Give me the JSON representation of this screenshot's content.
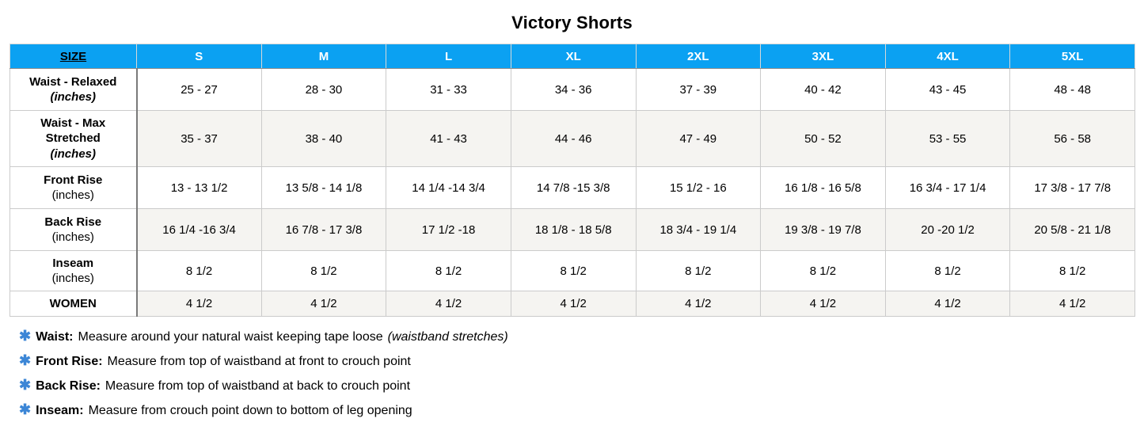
{
  "title": "Victory Shorts",
  "chart_data": {
    "type": "table",
    "title": "Victory Shorts",
    "header": {
      "size": "SIZE",
      "sizes": [
        "S",
        "M",
        "L",
        "XL",
        "2XL",
        "3XL",
        "4XL",
        "5XL"
      ]
    },
    "rows": [
      {
        "label": "Waist - Relaxed",
        "unit": "(inches)",
        "values": [
          "25 - 27",
          "28 - 30",
          "31 - 33",
          "34 - 36",
          "37 - 39",
          "40 - 42",
          "43 - 45",
          "48 - 48"
        ]
      },
      {
        "label": "Waist - Max Stretched",
        "unit": "(inches)",
        "values": [
          "35 - 37",
          "38 - 40",
          "41 - 43",
          "44 - 46",
          "47 - 49",
          "50 - 52",
          "53 - 55",
          "56 - 58"
        ]
      },
      {
        "label": "Front Rise",
        "unit": "(inches)",
        "values": [
          "13 - 13 1/2",
          "13 5/8 - 14 1/8",
          "14 1/4 -14 3/4",
          "14 7/8 -15 3/8",
          "15 1/2 - 16",
          "16 1/8 - 16 5/8",
          "16 3/4 - 17 1/4",
          "17 3/8 - 17 7/8"
        ]
      },
      {
        "label": "Back Rise",
        "unit": "(inches)",
        "values": [
          "16 1/4 -16 3/4",
          "16 7/8 - 17 3/8",
          "17 1/2 -18",
          "18 1/8 - 18 5/8",
          "18 3/4 - 19 1/4",
          "19 3/8 - 19 7/8",
          "20 -20 1/2",
          "20 5/8 - 21 1/8"
        ]
      },
      {
        "label": "Inseam",
        "unit": "(inches)",
        "values": [
          "8 1/2",
          "8 1/2",
          "8 1/2",
          "8 1/2",
          "8 1/2",
          "8 1/2",
          "8 1/2",
          "8 1/2"
        ]
      },
      {
        "label": "WOMEN",
        "unit": "",
        "values": [
          "4 1/2",
          "4 1/2",
          "4 1/2",
          "4 1/2",
          "4 1/2",
          "4 1/2",
          "4 1/2",
          "4 1/2"
        ]
      }
    ]
  },
  "footnotes": [
    {
      "term": "Waist:",
      "text": "Measure around your natural waist keeping tape loose",
      "italic": "(waistband stretches)"
    },
    {
      "term": "Front Rise:",
      "text": "Measure from top of waistband at front to crouch point",
      "italic": ""
    },
    {
      "term": "Back Rise:",
      "text": "Measure from top of waistband at back to crouch point",
      "italic": ""
    },
    {
      "term": "Inseam:",
      "text": "Measure from crouch point down to bottom of leg opening",
      "italic": ""
    }
  ],
  "icons": {
    "footnote_marker": "✱"
  },
  "colors": {
    "header_blue": "#0ba1f2",
    "asterisk_blue": "#3c86d6",
    "alt_row_bg": "#f5f4f1",
    "border_light": "#cbcbcb",
    "border_dark": "#7a7a7a"
  }
}
